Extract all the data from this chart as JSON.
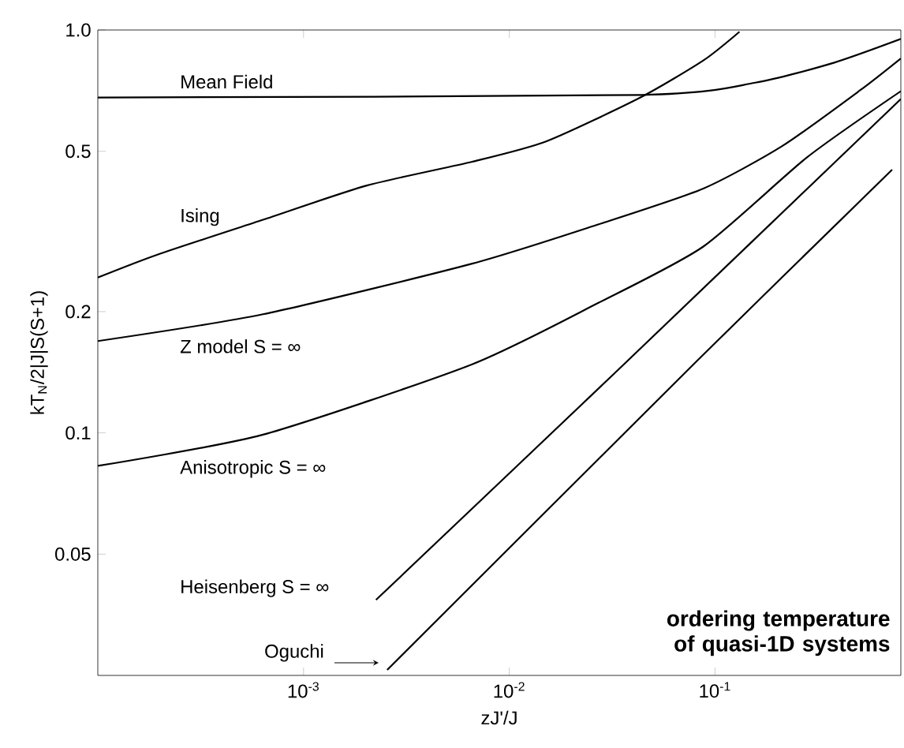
{
  "chart_data": {
    "type": "line",
    "xlabel": "zJ'/J",
    "ylabel": "kT$_{N}$/2|J|S(S+1)",
    "log": "xy",
    "xlim": [
      0.0001,
      0.8
    ],
    "ylim": [
      0.025,
      1
    ],
    "xticks": [
      {
        "value": 0.001,
        "label": "10$^{-3}$"
      },
      {
        "value": 0.01,
        "label": "10$^{-2}$"
      },
      {
        "value": 0.1,
        "label": "10$^{-1}$"
      }
    ],
    "yticks": [
      0.05,
      0.1,
      0.2,
      0.5,
      {
        "value": 1,
        "label": "1.0"
      }
    ],
    "marker": "none",
    "line_style": "solid",
    "annotations": [
      "ordering temperature of quasi-1D systems"
    ],
    "series": [
      {
        "name": "Mean Field",
        "color": "#000000",
        "x": [
          0.0001,
          0.0442,
          0.157,
          0.38,
          0.8
        ],
        "values": [
          0.68,
          0.69,
          0.74,
          0.83,
          0.95
        ]
      },
      {
        "name": "Ising",
        "color": "#000000",
        "x": [
          0.0001,
          0.000195,
          0.000635,
          0.00203,
          0.0066,
          0.0151,
          0.0434,
          0.0877,
          0.1315
        ],
        "values": [
          0.243,
          0.277,
          0.338,
          0.411,
          0.471,
          0.529,
          0.68,
          0.84,
          0.99
        ]
      },
      {
        "name": "Z model  S = ∞",
        "color": "#000000",
        "x": [
          0.0001,
          0.000635,
          0.0066,
          0.027,
          0.0877,
          0.212,
          0.51,
          0.8
        ],
        "values": [
          0.169,
          0.197,
          0.263,
          0.329,
          0.404,
          0.515,
          0.71,
          0.85
        ]
      },
      {
        "name": "Anisotropic  S = ∞",
        "color": "#000000",
        "x": [
          0.0001,
          0.000635,
          0.0066,
          0.027,
          0.0877,
          0.28,
          0.8
        ],
        "values": [
          0.0828,
          0.099,
          0.148,
          0.21,
          0.29,
          0.483,
          0.705
        ]
      },
      {
        "name": "Heisenberg  S = ∞",
        "color": "#000000",
        "x": [
          0.00225,
          0.0322,
          0.8
        ],
        "values": [
          0.0385,
          0.14,
          0.674
        ]
      },
      {
        "name": "Oguchi",
        "color": "#000000",
        "x": [
          0.00255,
          0.0818,
          0.726
        ],
        "values": [
          0.0258,
          0.151,
          0.45
        ]
      }
    ]
  }
}
